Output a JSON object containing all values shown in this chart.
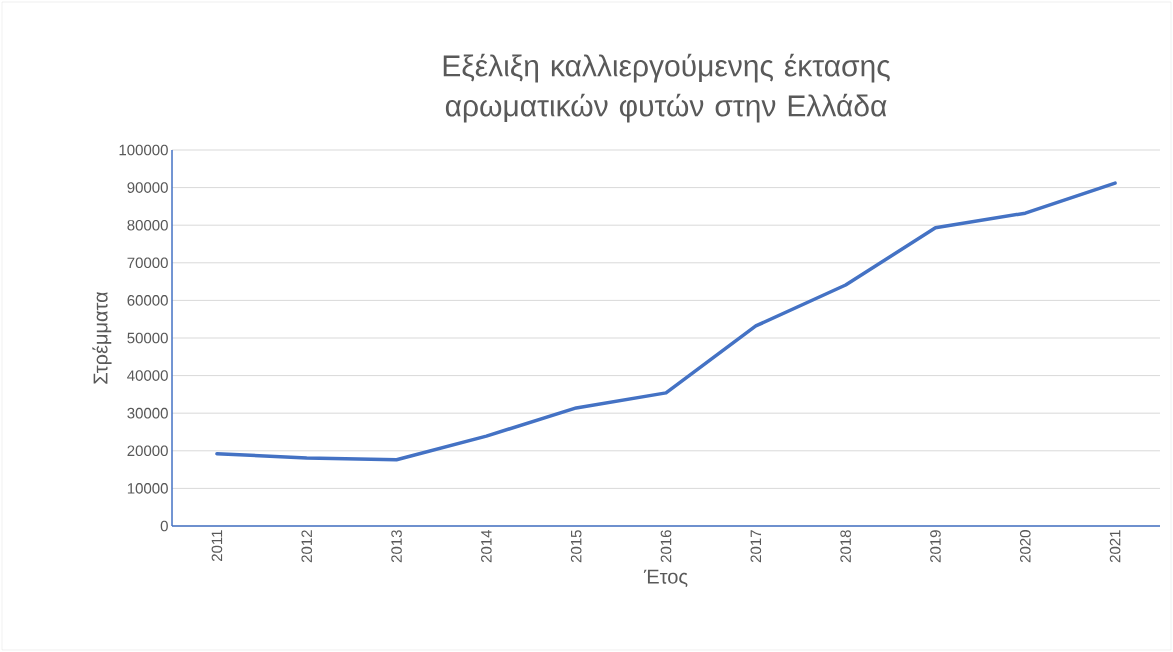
{
  "chart_data": {
    "type": "line",
    "title": "Εξέλιξη καλλιεργούμενης έκτασης αρωματικών φυτών στην Ελλάδα",
    "xlabel": "Έτος",
    "ylabel": "Στρέμματα",
    "categories": [
      "2011",
      "2012",
      "2013",
      "2014",
      "2015",
      "2016",
      "2017",
      "2018",
      "2019",
      "2020",
      "2021"
    ],
    "series": [
      {
        "color": "#4472c4",
        "values": [
          19200,
          18100,
          17600,
          23900,
          31400,
          35400,
          53200,
          64100,
          79300,
          83200,
          91200
        ]
      }
    ],
    "ylim": [
      0,
      100000
    ],
    "yticks": [
      0,
      10000,
      20000,
      30000,
      40000,
      50000,
      60000,
      70000,
      80000,
      90000,
      100000
    ],
    "grid": "y",
    "marker": "none",
    "line_style": "solid"
  }
}
